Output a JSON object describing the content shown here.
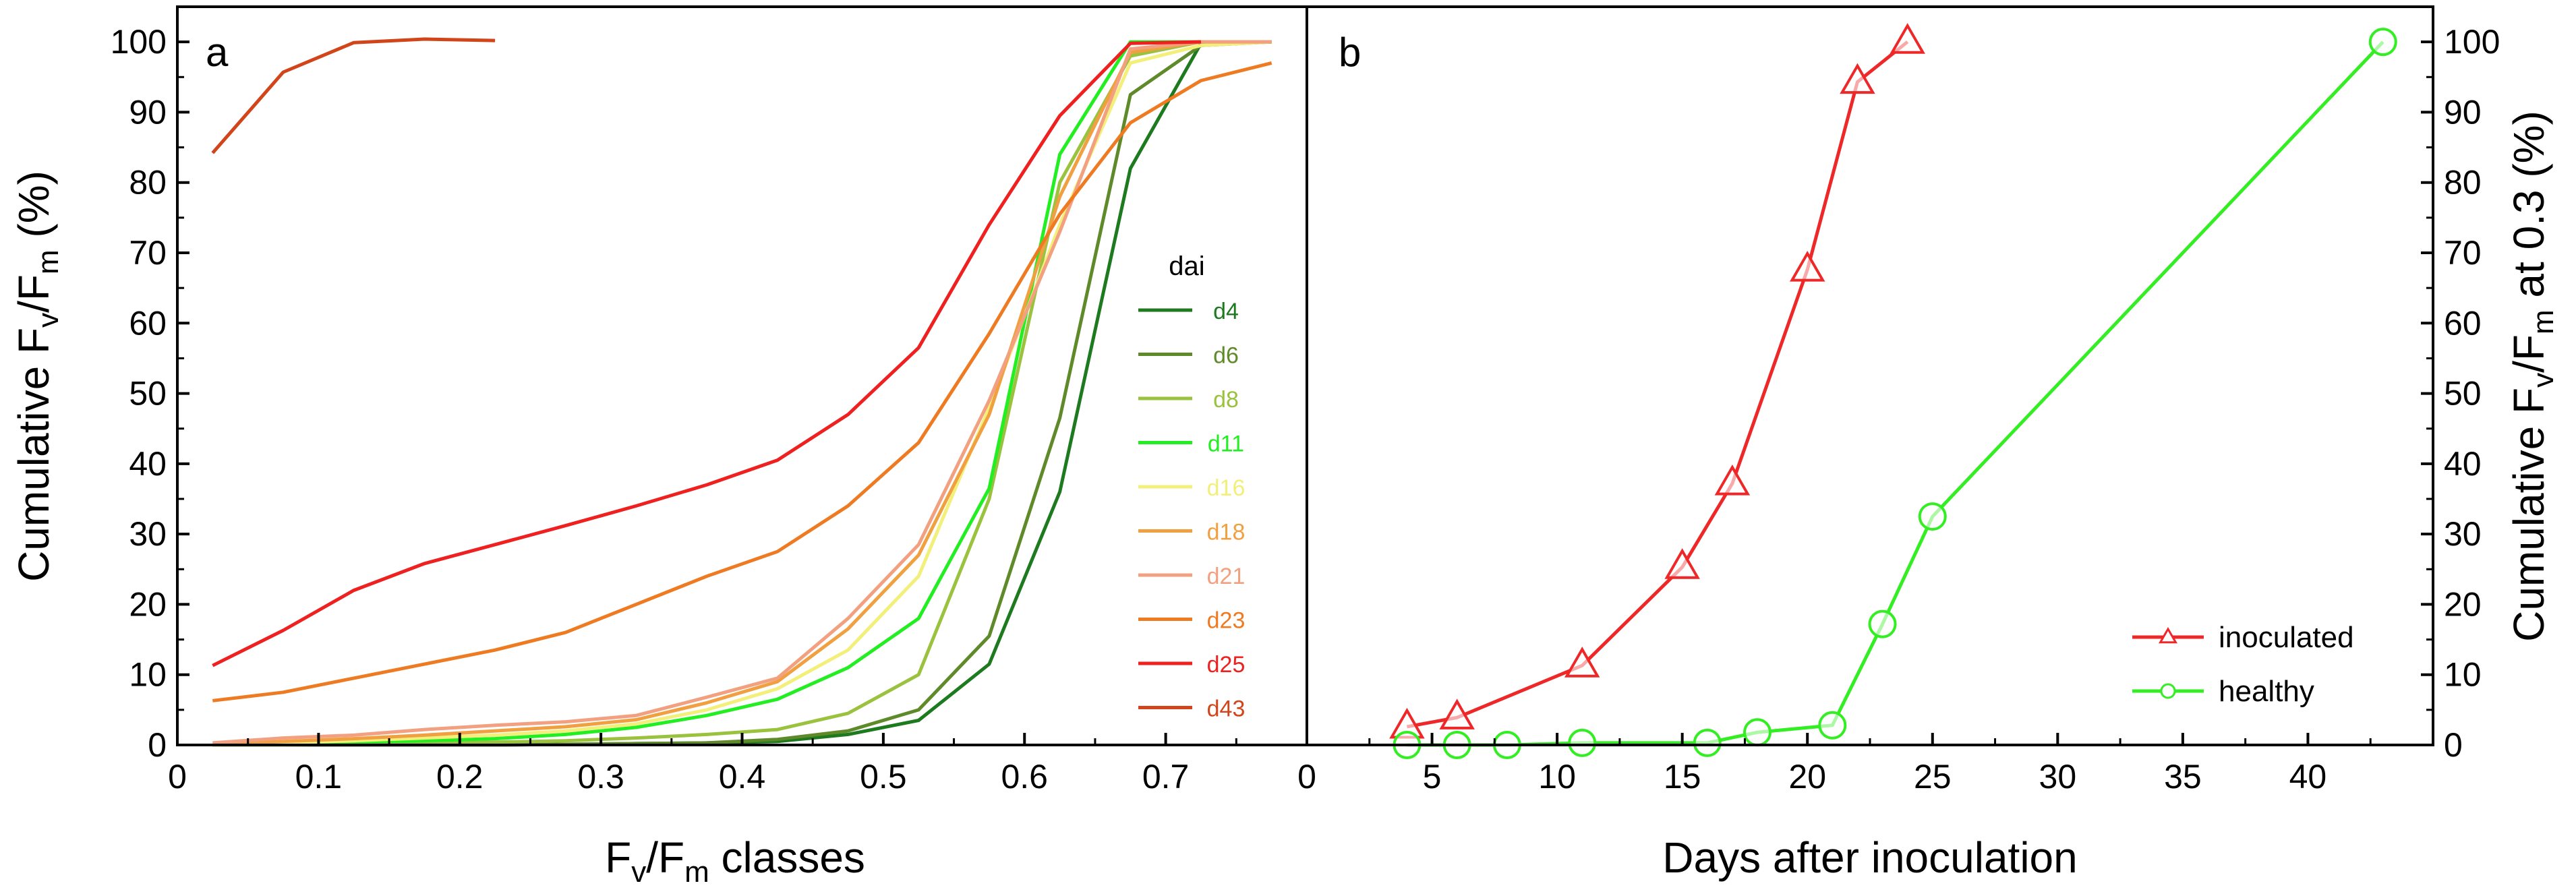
{
  "chart_data": [
    {
      "panel": "a",
      "type": "line",
      "xlabel": {
        "main": "F",
        "sub1": "v",
        "mid": "/F",
        "sub2": "m",
        "tail": " classes"
      },
      "ylabel": {
        "main": "Cumulative F",
        "sub1": "v",
        "mid": "/F",
        "sub2": "m",
        "tail": " (%)"
      },
      "xlim": [
        0,
        0.8
      ],
      "ylim": [
        0,
        105
      ],
      "xticks": [
        "0",
        "0.1",
        "0.2",
        "0.3",
        "0.4",
        "0.5",
        "0.6",
        "0.7"
      ],
      "yticks": [
        "0",
        "10",
        "20",
        "30",
        "40",
        "50",
        "60",
        "70",
        "80",
        "90",
        "100"
      ],
      "legend_title": "dai",
      "legend_position": "center-right",
      "series": [
        {
          "name": "d4",
          "color": "#1e7a1e",
          "x": [
            0.025,
            0.075,
            0.125,
            0.175,
            0.225,
            0.275,
            0.325,
            0.375,
            0.425,
            0.475,
            0.525,
            0.575,
            0.625,
            0.675,
            0.725,
            0.775
          ],
          "values": [
            0,
            0,
            0,
            0,
            0,
            0.1,
            0.2,
            0.3,
            0.5,
            1.5,
            3.5,
            11.5,
            36,
            82,
            99.8,
            100
          ]
        },
        {
          "name": "d6",
          "color": "#5f8a2a",
          "x": [
            0.025,
            0.075,
            0.125,
            0.175,
            0.225,
            0.275,
            0.325,
            0.375,
            0.425,
            0.475,
            0.525,
            0.575,
            0.625,
            0.675,
            0.725,
            0.775
          ],
          "values": [
            0,
            0,
            0,
            0,
            0,
            0.1,
            0.2,
            0.3,
            0.8,
            2,
            5,
            15.5,
            46.5,
            92.5,
            99.5,
            100
          ]
        },
        {
          "name": "d8",
          "color": "#9ac23e",
          "x": [
            0.025,
            0.075,
            0.125,
            0.175,
            0.225,
            0.275,
            0.325,
            0.375,
            0.425,
            0.475,
            0.525,
            0.575,
            0.625,
            0.675,
            0.725,
            0.775
          ],
          "values": [
            0,
            0,
            0.1,
            0.2,
            0.4,
            0.6,
            1,
            1.5,
            2.2,
            4.5,
            10,
            35,
            80,
            98,
            100,
            100
          ]
        },
        {
          "name": "d11",
          "color": "#22ee22",
          "x": [
            0.025,
            0.075,
            0.125,
            0.175,
            0.225,
            0.275,
            0.325,
            0.375,
            0.425,
            0.475,
            0.525,
            0.575,
            0.625,
            0.675,
            0.725,
            0.775
          ],
          "values": [
            0,
            0.2,
            0.4,
            0.6,
            0.9,
            1.5,
            2.5,
            4.2,
            6.5,
            11,
            18,
            36.5,
            84,
            100,
            100,
            100
          ]
        },
        {
          "name": "d16",
          "color": "#f2f07a",
          "x": [
            0.025,
            0.075,
            0.125,
            0.175,
            0.225,
            0.275,
            0.325,
            0.375,
            0.425,
            0.475,
            0.525,
            0.575,
            0.625,
            0.675,
            0.725,
            0.775
          ],
          "values": [
            0,
            0.3,
            0.6,
            1,
            1.4,
            2,
            3,
            5,
            8,
            13.5,
            24,
            48,
            74,
            97,
            99.5,
            100
          ]
        },
        {
          "name": "d18",
          "color": "#f0a040",
          "x": [
            0.025,
            0.075,
            0.125,
            0.175,
            0.225,
            0.275,
            0.325,
            0.375,
            0.425,
            0.475,
            0.525,
            0.575,
            0.625,
            0.675,
            0.725,
            0.775
          ],
          "values": [
            0,
            0.5,
            0.9,
            1.4,
            2,
            2.6,
            3.6,
            6,
            9,
            16.5,
            27,
            47,
            78,
            98.5,
            100,
            100
          ]
        },
        {
          "name": "d21",
          "color": "#f2a080",
          "x": [
            0.025,
            0.075,
            0.125,
            0.175,
            0.225,
            0.275,
            0.325,
            0.375,
            0.425,
            0.475,
            0.525,
            0.575,
            0.625,
            0.675,
            0.725,
            0.775
          ],
          "values": [
            0.3,
            1,
            1.4,
            2.2,
            2.8,
            3.3,
            4.2,
            6.8,
            9.5,
            18,
            28.5,
            49,
            73,
            99,
            100,
            100
          ]
        },
        {
          "name": "d23",
          "color": "#ee7a22",
          "x": [
            0.025,
            0.075,
            0.125,
            0.175,
            0.225,
            0.275,
            0.325,
            0.375,
            0.425,
            0.475,
            0.525,
            0.575,
            0.625,
            0.675,
            0.725,
            0.775
          ],
          "values": [
            6.3,
            7.5,
            9.5,
            11.5,
            13.5,
            16,
            20,
            24,
            27.5,
            34,
            43,
            58.5,
            75.5,
            88.5,
            94.5,
            97
          ]
        },
        {
          "name": "d25",
          "color": "#ee2020",
          "x": [
            0.025,
            0.075,
            0.125,
            0.175,
            0.225,
            0.275,
            0.325,
            0.375,
            0.425,
            0.475,
            0.525,
            0.575,
            0.625,
            0.675,
            0.725
          ],
          "values": [
            11.3,
            16.3,
            22,
            25.8,
            28.5,
            31.2,
            34,
            37,
            40.5,
            47,
            56.5,
            74,
            89.5,
            99.8,
            100
          ]
        },
        {
          "name": "d43",
          "color": "#d2451a",
          "x": [
            0.025,
            0.075,
            0.125,
            0.175,
            0.225
          ],
          "values": [
            84.2,
            95.7,
            99.9,
            100.4,
            100.2
          ]
        }
      ]
    },
    {
      "panel": "b",
      "type": "line",
      "xlabel": "Days after inoculation",
      "ylabel": {
        "main": "Cumulative F",
        "sub1": "v",
        "mid": "/F",
        "sub2": "m",
        "tail": " at 0.3 (%)"
      },
      "xlim": [
        0,
        45
      ],
      "ylim": [
        0,
        105
      ],
      "xticks": [
        "0",
        "5",
        "10",
        "15",
        "20",
        "25",
        "30",
        "35",
        "40"
      ],
      "yticks": [
        "0",
        "10",
        "20",
        "30",
        "40",
        "50",
        "60",
        "70",
        "80",
        "90",
        "100"
      ],
      "legend_position": "bottom-right",
      "series": [
        {
          "name": "inoculated",
          "color": "#ee2828",
          "marker": "triangle",
          "x": [
            4,
            6,
            11,
            15,
            17,
            20,
            22,
            24
          ],
          "values": [
            2.6,
            3.9,
            11.3,
            25.3,
            37.2,
            67.6,
            94.3,
            100
          ]
        },
        {
          "name": "healthy",
          "color": "#33ee22",
          "marker": "circle",
          "x": [
            4,
            6,
            8,
            11,
            16,
            18,
            21,
            23,
            25,
            43
          ],
          "values": [
            0,
            0,
            0,
            0.3,
            0.3,
            1.8,
            2.8,
            17.2,
            32.5,
            100
          ]
        }
      ]
    }
  ]
}
